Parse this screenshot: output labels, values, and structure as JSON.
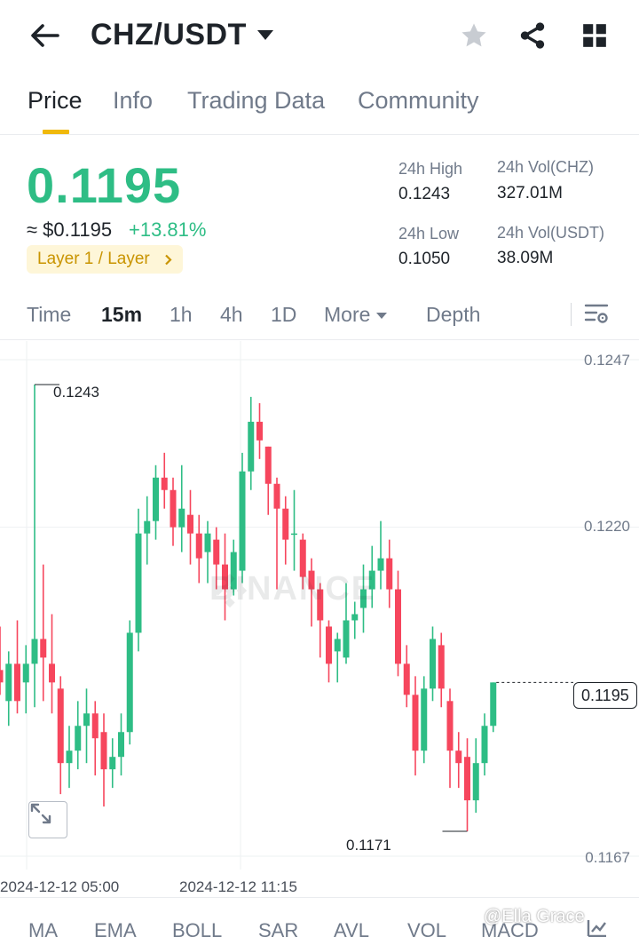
{
  "header": {
    "pair": "CHZ/USDT",
    "icons": [
      "back-arrow-icon",
      "caret-down-icon",
      "star-icon",
      "share-icon",
      "grid-icon"
    ]
  },
  "tabs": [
    {
      "label": "Price",
      "active": true
    },
    {
      "label": "Info",
      "active": false
    },
    {
      "label": "Trading Data",
      "active": false
    },
    {
      "label": "Community",
      "active": false
    }
  ],
  "price": {
    "last": "0.1195",
    "fiat": "≈ $0.1195",
    "change": "+13.81%",
    "tag": "Layer 1 / Layer",
    "tag_icon": "chevron-right-icon"
  },
  "stats": {
    "high_label": "24h High",
    "high_value": "0.1243",
    "low_label": "24h Low",
    "low_value": "0.1050",
    "vol_base_label": "24h Vol(CHZ)",
    "vol_base_value": "327.01M",
    "vol_quote_label": "24h Vol(USDT)",
    "vol_quote_value": "38.09M"
  },
  "intervals": {
    "items": [
      "Time",
      "15m",
      "1h",
      "4h",
      "1D",
      "More",
      "Depth"
    ],
    "active": "15m",
    "settings_icon": "chart-settings-icon"
  },
  "chart": {
    "y_labels": [
      "0.1247",
      "0.1220",
      "0.1167"
    ],
    "x_labels": [
      "2024-12-12 05:00",
      "2024-12-12 11:15"
    ],
    "last_price": "0.1195",
    "high_mark": "0.1243",
    "low_mark": "0.1171",
    "watermark": "BINANCE",
    "colors": {
      "up": "#2ebd85",
      "down": "#f6465d",
      "grid": "#eef0f2"
    }
  },
  "chart_data": {
    "type": "candlestick",
    "interval": "15m",
    "ylim": [
      0.1167,
      0.1247
    ],
    "yticks": [
      0.1247,
      0.122,
      0.1167
    ],
    "x_tick_labels": [
      "2024-12-12 05:00",
      "2024-12-12 11:15"
    ],
    "last_price": 0.1195,
    "high": 0.1243,
    "low": 0.1171,
    "candles": [
      {
        "o": 0.1197,
        "h": 0.1204,
        "l": 0.1193,
        "c": 0.1195
      },
      {
        "o": 0.1192,
        "h": 0.12,
        "l": 0.1188,
        "c": 0.1198
      },
      {
        "o": 0.1198,
        "h": 0.1205,
        "l": 0.119,
        "c": 0.1192
      },
      {
        "o": 0.1195,
        "h": 0.1201,
        "l": 0.119,
        "c": 0.1198
      },
      {
        "o": 0.1198,
        "h": 0.1243,
        "l": 0.1191,
        "c": 0.1202
      },
      {
        "o": 0.1202,
        "h": 0.1214,
        "l": 0.1192,
        "c": 0.1199
      },
      {
        "o": 0.1198,
        "h": 0.1206,
        "l": 0.119,
        "c": 0.1195
      },
      {
        "o": 0.1194,
        "h": 0.1196,
        "l": 0.1177,
        "c": 0.1182
      },
      {
        "o": 0.1182,
        "h": 0.1188,
        "l": 0.1178,
        "c": 0.1184
      },
      {
        "o": 0.1184,
        "h": 0.1192,
        "l": 0.1181,
        "c": 0.1188
      },
      {
        "o": 0.1188,
        "h": 0.1194,
        "l": 0.1182,
        "c": 0.119
      },
      {
        "o": 0.119,
        "h": 0.1192,
        "l": 0.118,
        "c": 0.1186
      },
      {
        "o": 0.1187,
        "h": 0.119,
        "l": 0.1175,
        "c": 0.1181
      },
      {
        "o": 0.1181,
        "h": 0.1186,
        "l": 0.1178,
        "c": 0.1183
      },
      {
        "o": 0.1183,
        "h": 0.119,
        "l": 0.118,
        "c": 0.1187
      },
      {
        "o": 0.1187,
        "h": 0.1205,
        "l": 0.1185,
        "c": 0.1203
      },
      {
        "o": 0.1203,
        "h": 0.1223,
        "l": 0.12,
        "c": 0.1219
      },
      {
        "o": 0.1219,
        "h": 0.1225,
        "l": 0.1214,
        "c": 0.1221
      },
      {
        "o": 0.1221,
        "h": 0.123,
        "l": 0.1218,
        "c": 0.1228
      },
      {
        "o": 0.1228,
        "h": 0.1232,
        "l": 0.1223,
        "c": 0.1226
      },
      {
        "o": 0.1226,
        "h": 0.1228,
        "l": 0.1217,
        "c": 0.122
      },
      {
        "o": 0.122,
        "h": 0.123,
        "l": 0.1216,
        "c": 0.1223
      },
      {
        "o": 0.1222,
        "h": 0.1226,
        "l": 0.1214,
        "c": 0.1219
      },
      {
        "o": 0.1219,
        "h": 0.1222,
        "l": 0.1211,
        "c": 0.1215
      },
      {
        "o": 0.1216,
        "h": 0.1221,
        "l": 0.1211,
        "c": 0.1219
      },
      {
        "o": 0.1218,
        "h": 0.122,
        "l": 0.121,
        "c": 0.1214
      },
      {
        "o": 0.1214,
        "h": 0.1219,
        "l": 0.1205,
        "c": 0.121
      },
      {
        "o": 0.121,
        "h": 0.1218,
        "l": 0.1209,
        "c": 0.1216
      },
      {
        "o": 0.1213,
        "h": 0.1232,
        "l": 0.1211,
        "c": 0.1229
      },
      {
        "o": 0.1229,
        "h": 0.1241,
        "l": 0.1226,
        "c": 0.1237
      },
      {
        "o": 0.1237,
        "h": 0.124,
        "l": 0.1231,
        "c": 0.1234
      },
      {
        "o": 0.1233,
        "h": 0.1233,
        "l": 0.1222,
        "c": 0.1227
      },
      {
        "o": 0.1227,
        "h": 0.1228,
        "l": 0.121,
        "c": 0.1223
      },
      {
        "o": 0.1223,
        "h": 0.1225,
        "l": 0.1214,
        "c": 0.1218
      },
      {
        "o": 0.1219,
        "h": 0.1226,
        "l": 0.1213,
        "c": 0.1219
      },
      {
        "o": 0.1218,
        "h": 0.1219,
        "l": 0.121,
        "c": 0.1212
      },
      {
        "o": 0.1213,
        "h": 0.1215,
        "l": 0.1204,
        "c": 0.121
      },
      {
        "o": 0.121,
        "h": 0.1211,
        "l": 0.1199,
        "c": 0.1205
      },
      {
        "o": 0.1204,
        "h": 0.1205,
        "l": 0.1195,
        "c": 0.1198
      },
      {
        "o": 0.12,
        "h": 0.1203,
        "l": 0.1195,
        "c": 0.1202
      },
      {
        "o": 0.1199,
        "h": 0.1211,
        "l": 0.1198,
        "c": 0.1205
      },
      {
        "o": 0.1205,
        "h": 0.1208,
        "l": 0.1202,
        "c": 0.1206
      },
      {
        "o": 0.1207,
        "h": 0.1214,
        "l": 0.1203,
        "c": 0.121
      },
      {
        "o": 0.121,
        "h": 0.1217,
        "l": 0.1207,
        "c": 0.1213
      },
      {
        "o": 0.1213,
        "h": 0.1221,
        "l": 0.121,
        "c": 0.1215
      },
      {
        "o": 0.1215,
        "h": 0.1218,
        "l": 0.1207,
        "c": 0.121
      },
      {
        "o": 0.121,
        "h": 0.1213,
        "l": 0.1196,
        "c": 0.1198
      },
      {
        "o": 0.1198,
        "h": 0.1201,
        "l": 0.1191,
        "c": 0.1193
      },
      {
        "o": 0.1193,
        "h": 0.1196,
        "l": 0.118,
        "c": 0.1184
      },
      {
        "o": 0.1184,
        "h": 0.1196,
        "l": 0.1182,
        "c": 0.1194
      },
      {
        "o": 0.1194,
        "h": 0.1204,
        "l": 0.1192,
        "c": 0.1202
      },
      {
        "o": 0.1201,
        "h": 0.1203,
        "l": 0.1191,
        "c": 0.1194
      },
      {
        "o": 0.1192,
        "h": 0.1194,
        "l": 0.1178,
        "c": 0.1184
      },
      {
        "o": 0.1184,
        "h": 0.1187,
        "l": 0.1178,
        "c": 0.1182
      },
      {
        "o": 0.1183,
        "h": 0.1186,
        "l": 0.1171,
        "c": 0.1176
      },
      {
        "o": 0.1176,
        "h": 0.1186,
        "l": 0.1174,
        "c": 0.1182
      },
      {
        "o": 0.1182,
        "h": 0.119,
        "l": 0.118,
        "c": 0.1188
      },
      {
        "o": 0.1188,
        "h": 0.1195,
        "l": 0.1187,
        "c": 0.1195
      }
    ]
  },
  "indicators": [
    "MA",
    "EMA",
    "BOLL",
    "SAR",
    "AVL",
    "VOL",
    "MACD"
  ],
  "credit": "@Ella Grace"
}
